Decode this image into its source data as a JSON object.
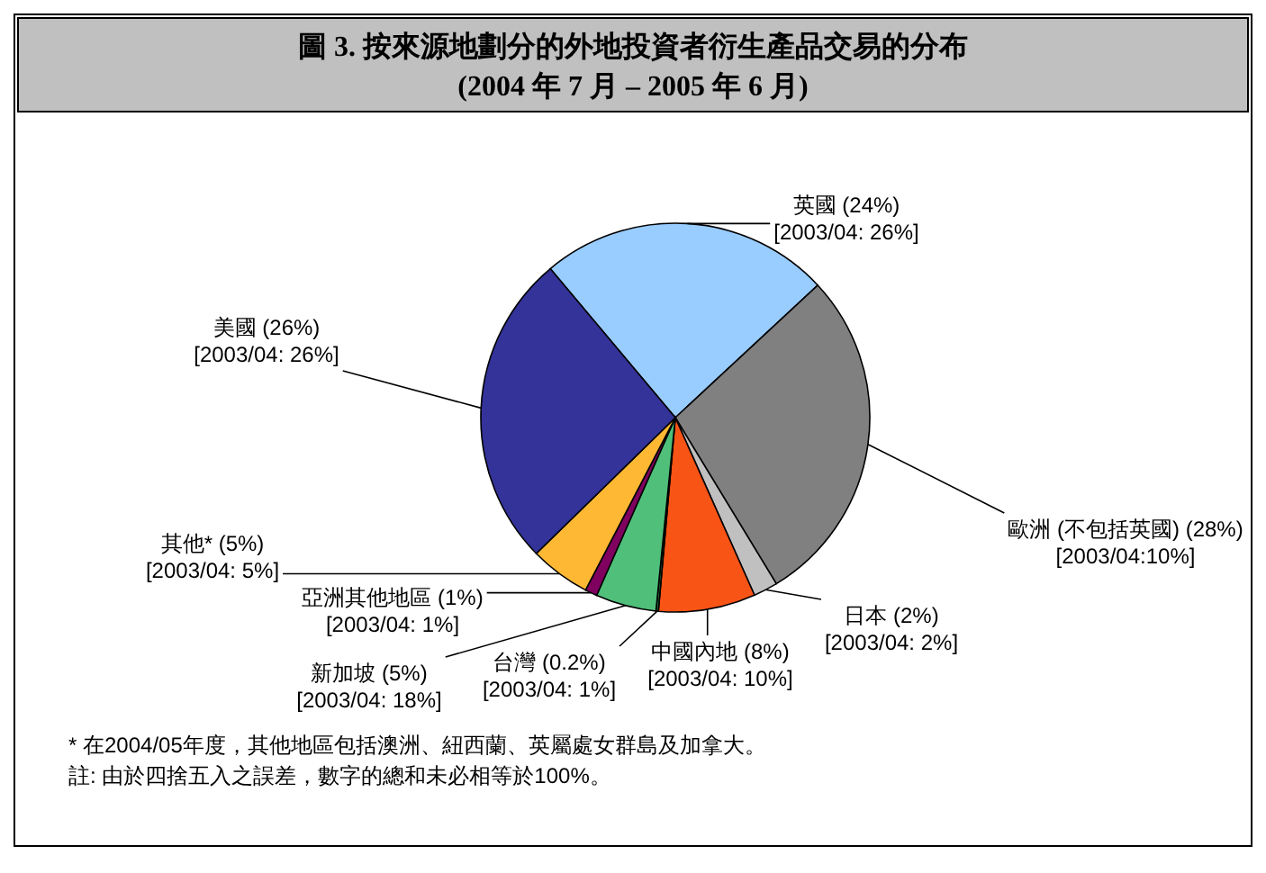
{
  "chart_data": {
    "type": "pie",
    "title": "圖 3.  按來源地劃分的外地投資者衍生產品交易的分布",
    "subtitle": "(2004 年 7 月 – 2005 年 6 月)",
    "categories": [
      "英國",
      "歐洲 (不包括英國)",
      "日本",
      "中國內地",
      "台灣",
      "新加坡",
      "亞洲其他地區",
      "其他*",
      "美國"
    ],
    "values": [
      24,
      28,
      2,
      8,
      0.2,
      5,
      1,
      5,
      26
    ],
    "colors": [
      "#99ccff",
      "#808080",
      "#c0c0c0",
      "#f85415",
      "#1f6e3a",
      "#4fbf7a",
      "#800060",
      "#ffb833",
      "#333399"
    ],
    "value_labels": [
      "(24%)",
      "(28%)",
      "(2%)",
      "(8%)",
      "(0.2%)",
      "(5%)",
      "(1%)",
      "(5%)",
      "(26%)"
    ],
    "annotations": [
      "[2003/04: 26%]",
      "[2003/04:10%]",
      "[2003/04: 2%]",
      "[2003/04: 10%]",
      "[2003/04: 1%]",
      "[2003/04: 18%]",
      "[2003/04: 1%]",
      "[2003/04: 5%]",
      "[2003/04: 26%]",
      "* 在2004/05年度，其他地區包括澳洲、紐西蘭、英屬處女群島及加拿大。",
      "註: 由於四捨五入之誤差，數字的總和未必相等於100%。"
    ]
  }
}
